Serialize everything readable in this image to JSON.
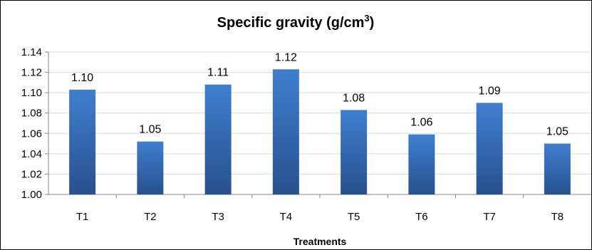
{
  "chart_data": {
    "type": "bar",
    "title_main": "Specific gravity (g/cm",
    "title_sup": "3",
    "title_end": ")",
    "xlabel": "Treatments",
    "ylabel": "",
    "ylim": [
      1.0,
      1.14
    ],
    "yticks": [
      "1.00",
      "1.02",
      "1.04",
      "1.06",
      "1.08",
      "1.10",
      "1.12",
      "1.14"
    ],
    "categories": [
      "T1",
      "T2",
      "T3",
      "T4",
      "T5",
      "T6",
      "T7",
      "T8"
    ],
    "values": [
      1.103,
      1.052,
      1.108,
      1.123,
      1.083,
      1.059,
      1.09,
      1.05
    ],
    "data_labels": [
      "1.10",
      "1.05",
      "1.11",
      "1.12",
      "1.08",
      "1.06",
      "1.09",
      "1.05"
    ],
    "grid": "horizontal",
    "legend": "none",
    "colors": {
      "bar_top": "#3f7fcf",
      "bar_bottom": "#28508e",
      "grid": "#d9d9d9",
      "axis": "#868686"
    }
  }
}
